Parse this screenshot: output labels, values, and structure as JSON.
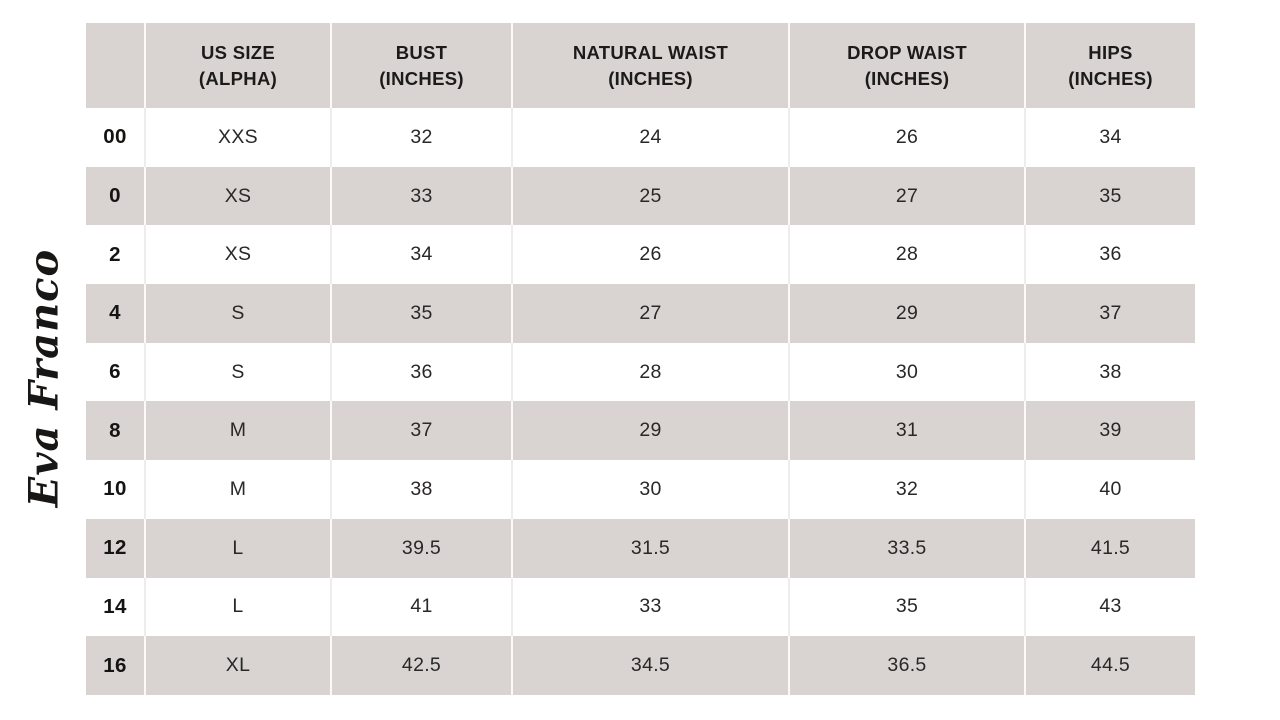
{
  "logo": {
    "text": "Eva Franco"
  },
  "colors": {
    "background": "#ffffff",
    "row_shade": "#d9d4d1",
    "separator_on_shade": "#fbfaf9",
    "separator_on_white": "#efedeb",
    "text": "#2a2827"
  },
  "table": {
    "headers": [
      {
        "line1": "",
        "line2": ""
      },
      {
        "line1": "US SIZE",
        "line2": "(ALPHA)"
      },
      {
        "line1": "BUST",
        "line2": "(INCHES)"
      },
      {
        "line1": "NATURAL WAIST",
        "line2": "(INCHES)"
      },
      {
        "line1": "DROP WAIST",
        "line2": "(INCHES)"
      },
      {
        "line1": "HIPS",
        "line2": "(INCHES)"
      }
    ],
    "rows": [
      {
        "us_size": "00",
        "alpha": "XXS",
        "bust": "32",
        "natural_waist": "24",
        "drop_waist": "26",
        "hips": "34"
      },
      {
        "us_size": "0",
        "alpha": "XS",
        "bust": "33",
        "natural_waist": "25",
        "drop_waist": "27",
        "hips": "35"
      },
      {
        "us_size": "2",
        "alpha": "XS",
        "bust": "34",
        "natural_waist": "26",
        "drop_waist": "28",
        "hips": "36"
      },
      {
        "us_size": "4",
        "alpha": "S",
        "bust": "35",
        "natural_waist": "27",
        "drop_waist": "29",
        "hips": "37"
      },
      {
        "us_size": "6",
        "alpha": "S",
        "bust": "36",
        "natural_waist": "28",
        "drop_waist": "30",
        "hips": "38"
      },
      {
        "us_size": "8",
        "alpha": "M",
        "bust": "37",
        "natural_waist": "29",
        "drop_waist": "31",
        "hips": "39"
      },
      {
        "us_size": "10",
        "alpha": "M",
        "bust": "38",
        "natural_waist": "30",
        "drop_waist": "32",
        "hips": "40"
      },
      {
        "us_size": "12",
        "alpha": "L",
        "bust": "39.5",
        "natural_waist": "31.5",
        "drop_waist": "33.5",
        "hips": "41.5"
      },
      {
        "us_size": "14",
        "alpha": "L",
        "bust": "41",
        "natural_waist": "33",
        "drop_waist": "35",
        "hips": "43"
      },
      {
        "us_size": "16",
        "alpha": "XL",
        "bust": "42.5",
        "natural_waist": "34.5",
        "drop_waist": "36.5",
        "hips": "44.5"
      }
    ]
  }
}
